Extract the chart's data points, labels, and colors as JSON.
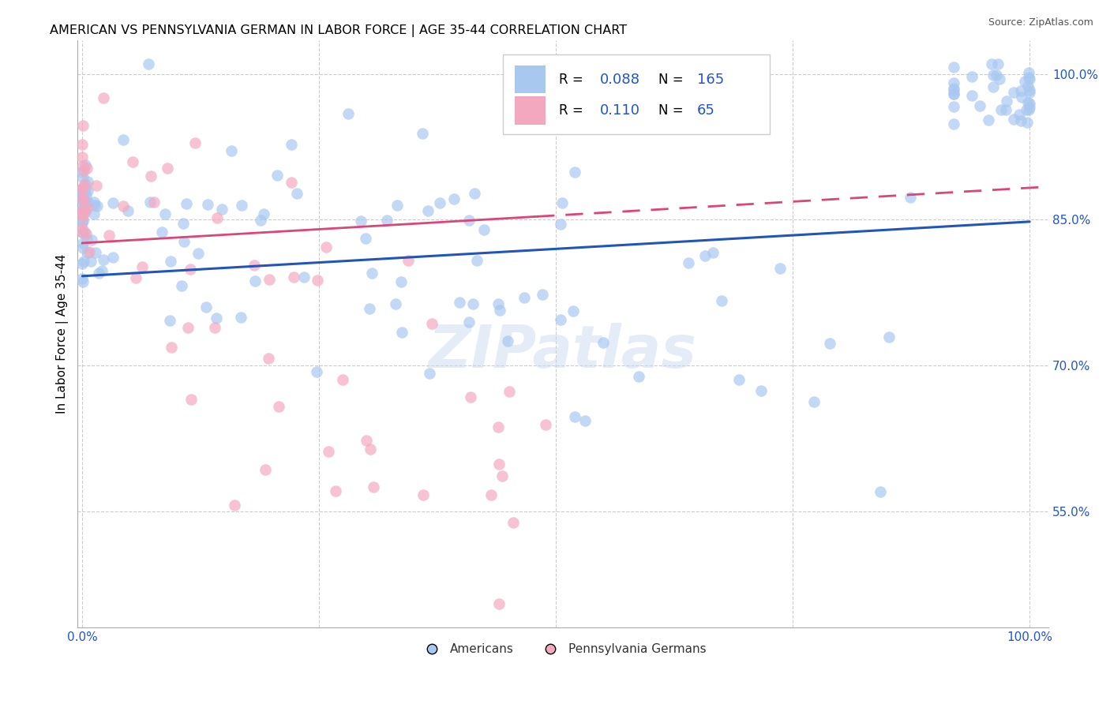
{
  "title": "AMERICAN VS PENNSYLVANIA GERMAN IN LABOR FORCE | AGE 35-44 CORRELATION CHART",
  "source": "Source: ZipAtlas.com",
  "ylabel": "In Labor Force | Age 35-44",
  "watermark": "ZIPatlas",
  "blue_color": "#a8c8f0",
  "pink_color": "#f4a8c0",
  "trend_blue_color": "#2255bb",
  "trend_pink_color": "#dd4477",
  "legend_r1": "R = 0.088",
  "legend_n1": "N = 165",
  "legend_r2": "R =  0.110",
  "legend_n2": "N =  65",
  "legend_value_color": "#2255cc",
  "right_yticks": [
    0.55,
    0.7,
    0.85,
    1.0
  ],
  "right_yticklabels": [
    "55.0%",
    "70.0%",
    "85.0%",
    "100.0%"
  ],
  "x_min": -0.005,
  "x_max": 1.02,
  "y_min": 0.43,
  "y_max": 1.035,
  "trend_blue_x0": 0.0,
  "trend_blue_y0": 0.792,
  "trend_blue_x1": 1.0,
  "trend_blue_y1": 0.848,
  "trend_pink_x0": 0.0,
  "trend_pink_y0": 0.826,
  "trend_pink_x1": 1.02,
  "trend_pink_y1": 0.884,
  "trend_pink_solid_end": 0.48,
  "grid_yticks": [
    0.55,
    0.7,
    0.85,
    1.0
  ],
  "grid_xticks": [
    0.0,
    0.25,
    0.5,
    0.75,
    1.0
  ]
}
